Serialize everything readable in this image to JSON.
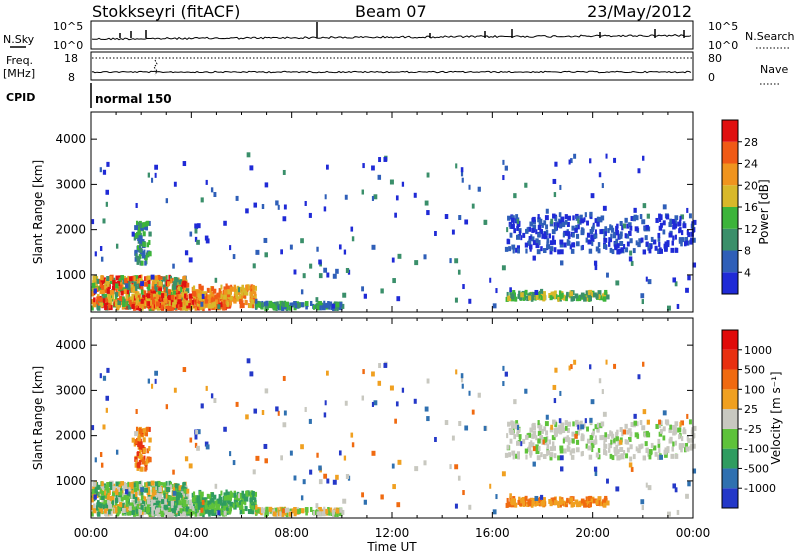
{
  "header": {
    "station": "Stokkseyri (fitACF)",
    "beam": "Beam 07",
    "date": "23/May/2012"
  },
  "top_panels": {
    "nsky_label": "N.Sky",
    "nsky_ticks": [
      "10^5",
      "10^0"
    ],
    "nsearch_label": "N.Search",
    "nsearch_ticks": [
      "10^5",
      "10^0"
    ],
    "freq_label_1": "Freq.",
    "freq_label_2": "[MHz]",
    "freq_ticks": [
      "18",
      "8"
    ],
    "nave_label": "Nave",
    "nave_ticks": [
      "80",
      "0"
    ],
    "cpid_label": "CPID",
    "cpid_mode": "normal 150"
  },
  "chart_data": [
    {
      "type": "heatmap",
      "name": "power",
      "ylabel": "Slant Range [km]",
      "xlabel": "Time UT",
      "x_ticks": [
        "00:00",
        "04:00",
        "08:00",
        "12:00",
        "16:00",
        "20:00",
        "00:00"
      ],
      "x_range_hours": [
        0,
        24
      ],
      "y_ticks": [
        1000,
        2000,
        3000,
        4000
      ],
      "ylim": [
        180,
        4600
      ],
      "colorbar": {
        "label": "Power [dB]",
        "ticks": [
          "4",
          "8",
          "12",
          "16",
          "20",
          "24",
          "28"
        ],
        "colors": [
          "#1f2ad6",
          "#2f5fb8",
          "#3a8f6a",
          "#3cb43a",
          "#d8b82a",
          "#f0941e",
          "#f05a16",
          "#e01010"
        ]
      }
    },
    {
      "type": "heatmap",
      "name": "velocity",
      "ylabel": "Slant Range [km]",
      "xlabel": "Time UT",
      "x_ticks": [
        "00:00",
        "04:00",
        "08:00",
        "12:00",
        "16:00",
        "20:00",
        "00:00"
      ],
      "x_range_hours": [
        0,
        24
      ],
      "y_ticks": [
        1000,
        2000,
        3000,
        4000
      ],
      "ylim": [
        180,
        4600
      ],
      "colorbar": {
        "label": "Velocity [m s⁻¹]",
        "ticks": [
          "1000",
          "500",
          "100",
          "25",
          "-25",
          "-100",
          "-500",
          "-1000"
        ],
        "colors": [
          "#2438c8",
          "#2f70b0",
          "#2f9c60",
          "#5ec23a",
          "#c8c8c0",
          "#f0a020",
          "#f06a10",
          "#e83010",
          "#e00a0a"
        ]
      }
    }
  ]
}
